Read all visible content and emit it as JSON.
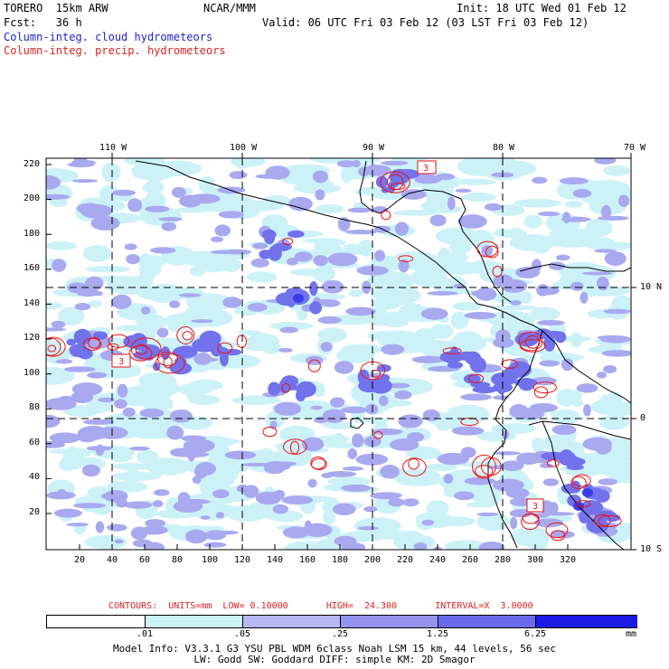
{
  "header": {
    "model_name": "TORERO  15km ARW",
    "org": "NCAR/MMM",
    "init": "Init: 18 UTC Wed 01 Feb 12",
    "fcst": "Fcst:   36 h",
    "valid": "Valid: 06 UTC Fri 03 Feb 12 (03 LST Fri 03 Feb 12)",
    "field_blue": "Column-integ. cloud hydrometeors",
    "field_red": "Column-integ. precip. hydrometeors"
  },
  "map": {
    "lon_labels": [
      "110 W",
      "100 W",
      "90 W",
      "80 W",
      "70 W"
    ],
    "lat_labels": [
      "10 N",
      "0",
      "10 S"
    ],
    "y_ticks": [
      "220",
      "200",
      "180",
      "160",
      "140",
      "120",
      "100",
      "80",
      "60",
      "40",
      "20"
    ],
    "x_ticks": [
      "20",
      "40",
      "60",
      "80",
      "100",
      "120",
      "140",
      "160",
      "180",
      "200",
      "220",
      "240",
      "260",
      "280",
      "300",
      "320"
    ],
    "box_labels": [
      "3",
      "3",
      "3"
    ],
    "colors": {
      "cloud_light": "#ccf2f8",
      "cloud_mid": "#a9a9f0",
      "cloud_dark": "#7272ec",
      "cloud_deep": "#3b3be8",
      "precip": "#ee1111",
      "coast": "#000000"
    }
  },
  "contours": {
    "label": "CONTOURS:  UNITS=mm  LOW= 0.10000       HIGH=  24.300       INTERVAL=X  3.0000"
  },
  "colorbar": {
    "colors": [
      "#ffffff",
      "#ccf2f8",
      "#b7b7f2",
      "#9494ee",
      "#6a6aec",
      "#4646e8",
      "#1a1ae4"
    ],
    "labels": [
      ".01",
      ".05",
      ".25",
      "1.25",
      "6.25"
    ],
    "unit": "mm"
  },
  "footer": {
    "line1": "Model Info: V3.3.1    G3      YSU PBL  WDM 6class  Noah LSM  15 km,    44 levels,    56 sec",
    "line2": "LW: Godd SW: Goddard DIFF: simple KM: 2D Smagor"
  }
}
